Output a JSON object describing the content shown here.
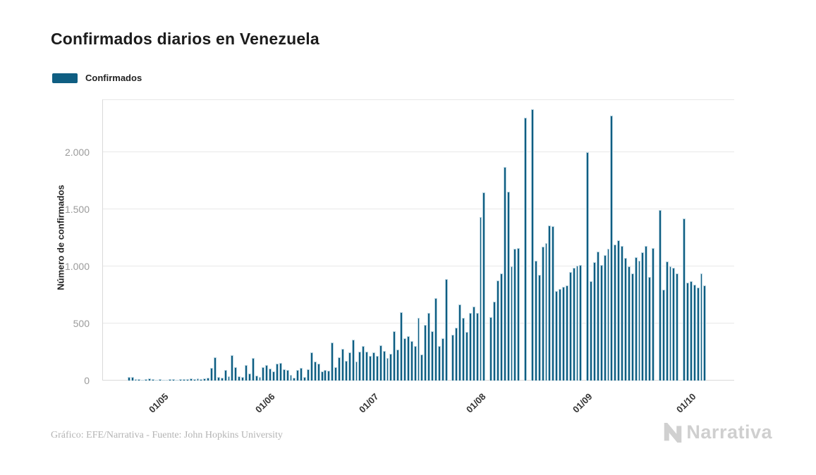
{
  "title": "Confirmados diarios en Venezuela",
  "legend": {
    "label": "Confirmados",
    "swatch_color": "#0f5e82"
  },
  "y_axis": {
    "title": "Número de confirmados",
    "ticks": [
      {
        "label": "0",
        "value": 0
      },
      {
        "label": "500",
        "value": 500
      },
      {
        "label": "1.000",
        "value": 1000
      },
      {
        "label": "1.500",
        "value": 1500
      },
      {
        "label": "2.000",
        "value": 2000
      }
    ],
    "max": 2460
  },
  "x_axis": {
    "ticks": [
      {
        "label": "01/05",
        "day_index": 17
      },
      {
        "label": "01/06",
        "day_index": 48
      },
      {
        "label": "01/07",
        "day_index": 78
      },
      {
        "label": "01/08",
        "day_index": 109
      },
      {
        "label": "01/09",
        "day_index": 140
      },
      {
        "label": "01/10",
        "day_index": 170
      }
    ]
  },
  "footer": {
    "credit": "Gráfico: EFE/Narrativa - Fuente: John Hopkins University",
    "brand": "Narrativa"
  },
  "chart_data": {
    "type": "bar",
    "title": "Confirmados diarios en Venezuela",
    "xlabel": "",
    "ylabel": "Número de confirmados",
    "ylim": [
      0,
      2460
    ],
    "grid": "horizontal",
    "legend_position": "top-left",
    "bar_color": "#0f5e82",
    "x_range": {
      "start_date": "14/04/2020",
      "end_date": "13/10/2020",
      "unit": "day"
    },
    "x_tick_labels": [
      "01/05",
      "01/06",
      "01/07",
      "01/08",
      "01/09",
      "01/10"
    ],
    "series": [
      {
        "name": "Confirmados",
        "values": [
          0,
          0,
          0,
          0,
          0,
          0,
          0,
          33,
          28,
          15,
          10,
          6,
          12,
          18,
          10,
          8,
          14,
          9,
          7,
          12,
          15,
          8,
          10,
          14,
          12,
          16,
          10,
          20,
          14,
          18,
          25,
          110,
          205,
          28,
          22,
          95,
          40,
          225,
          115,
          35,
          28,
          135,
          60,
          195,
          45,
          30,
          120,
          135,
          105,
          80,
          145,
          155,
          100,
          95,
          50,
          25,
          95,
          110,
          30,
          100,
          245,
          165,
          150,
          80,
          95,
          88,
          330,
          115,
          205,
          280,
          170,
          245,
          355,
          165,
          250,
          300,
          250,
          215,
          245,
          215,
          310,
          260,
          200,
          235,
          430,
          270,
          600,
          370,
          390,
          345,
          300,
          550,
          230,
          490,
          590,
          430,
          719,
          305,
          370,
          887,
          0,
          398,
          460,
          665,
          546,
          425,
          595,
          650,
          595,
          1428,
          1644,
          0,
          558,
          688,
          875,
          938,
          1870,
          1652,
          998,
          1150,
          1158,
          0,
          2300,
          0,
          2375,
          1050,
          925,
          1170,
          1200,
          1354,
          1350,
          785,
          800,
          818,
          830,
          950,
          985,
          1005,
          1010,
          0,
          2000,
          870,
          1035,
          1128,
          1010,
          1095,
          1152,
          2320,
          1190,
          1230,
          1180,
          1075,
          1000,
          940,
          1080,
          1050,
          1120,
          1180,
          905,
          1160,
          0,
          1490,
          795,
          1040,
          1000,
          985,
          940,
          0,
          1420,
          855,
          870,
          840,
          815,
          935,
          830,
          0,
          0,
          0,
          0,
          0,
          0,
          0,
          0
        ]
      }
    ]
  }
}
